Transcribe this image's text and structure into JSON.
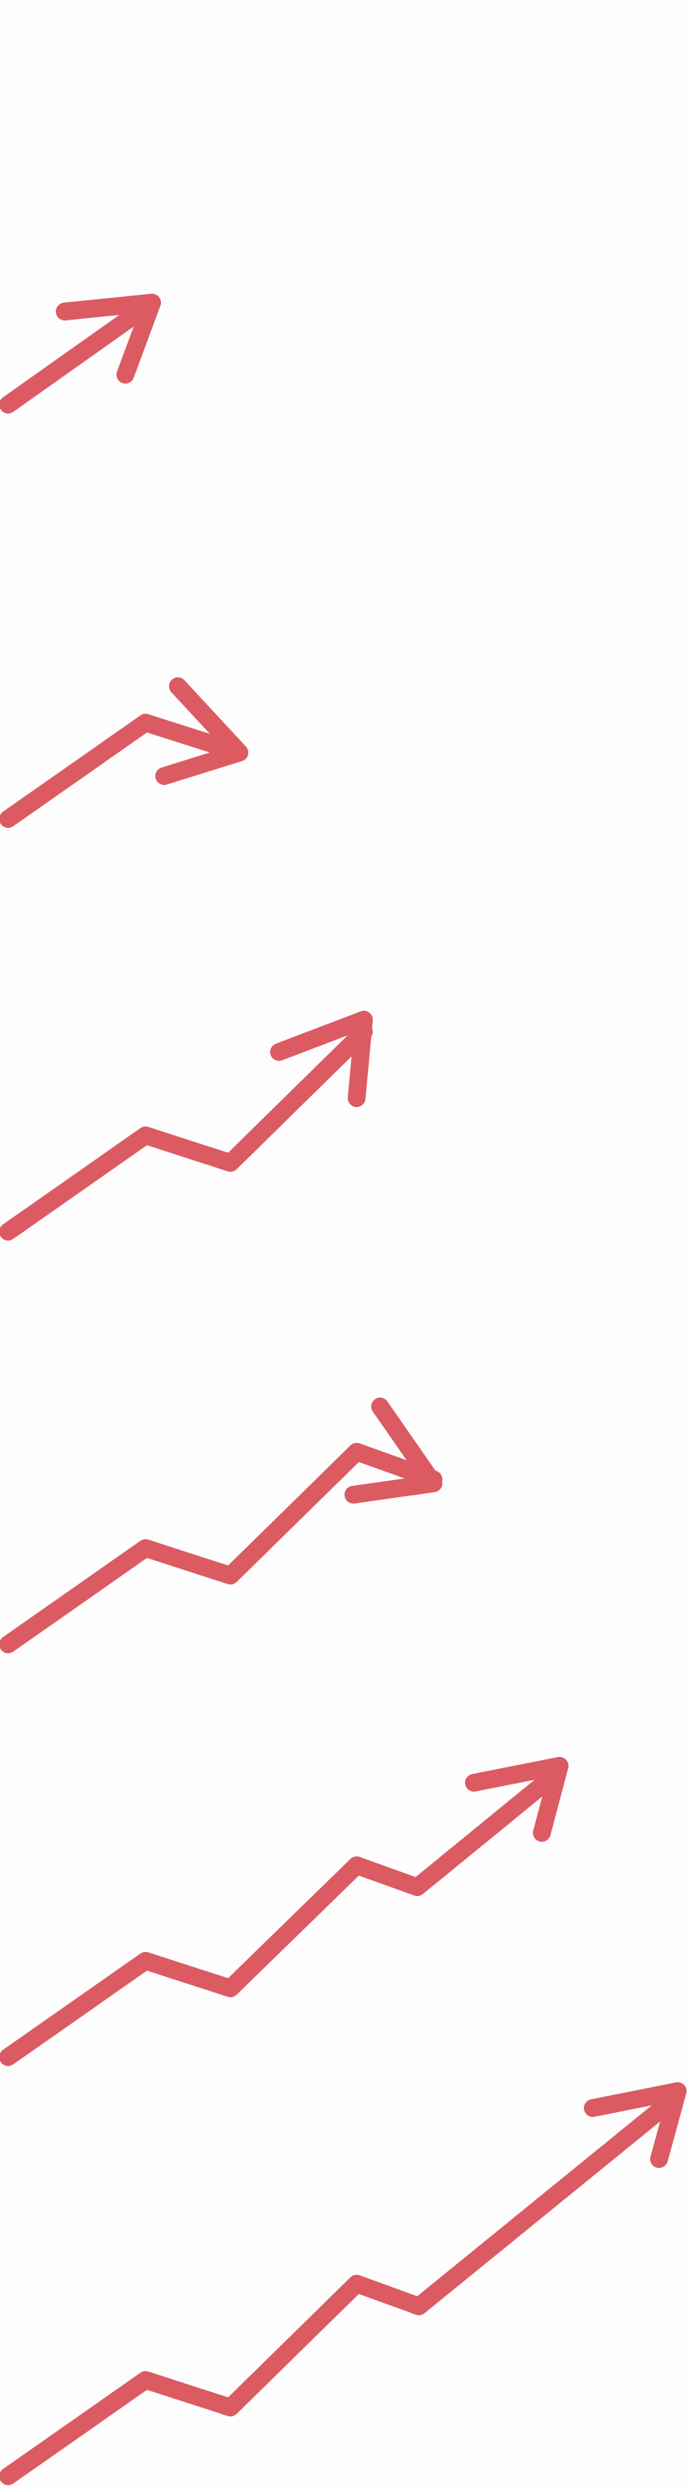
{
  "background_color": "#fdfdfd",
  "stroke_color": "#dc5a62",
  "icons": [
    {
      "name": "trend-arrow-icon-1",
      "shape": "straight upward arrow"
    },
    {
      "name": "trend-arrow-icon-2",
      "shape": "arrow with one bend"
    },
    {
      "name": "trend-arrow-icon-3",
      "shape": "zigzag arrow with two bends"
    },
    {
      "name": "trend-arrow-icon-4",
      "shape": "zigzag arrow with three bends"
    },
    {
      "name": "trend-arrow-icon-5",
      "shape": "zigzag arrow with four bends"
    },
    {
      "name": "trend-arrow-icon-6",
      "shape": "long zigzag arrow with four bends"
    }
  ]
}
